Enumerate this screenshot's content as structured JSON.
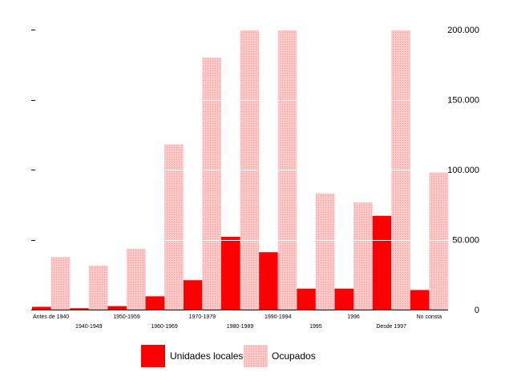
{
  "chart_data": {
    "type": "bar",
    "categories": [
      "Antes de 1940",
      "1940-1949",
      "1950-1959",
      "1960-1969",
      "1970-1979",
      "1980-1989",
      "1990-1994",
      "1995",
      "1996",
      "Desde 1997",
      "No consta"
    ],
    "series": [
      {
        "name": "Unidades locales",
        "color": "#ff0000",
        "pattern": "solid",
        "values": [
          2000,
          1000,
          2500,
          9500,
          21000,
          52000,
          41000,
          15000,
          15000,
          67000,
          14000
        ]
      },
      {
        "name": "Ocupados",
        "color": "#ffc8c8",
        "pattern": "dotted",
        "values": [
          37500,
          31500,
          43500,
          118000,
          180000,
          200000,
          200000,
          83000,
          76500,
          200000,
          98000
        ]
      }
    ],
    "y_axis": {
      "side": "right",
      "ylim": [
        0,
        200000
      ],
      "ticks": [
        0,
        50000,
        100000,
        150000,
        200000
      ],
      "tick_labels": [
        "0",
        "50.000",
        "100.000",
        "150.000",
        "200.000"
      ]
    },
    "left_axis_marks": 5,
    "grid": true,
    "grid_color": "#ffffff",
    "legend_position": "bottom",
    "title": "",
    "xlabel": "",
    "ylabel": ""
  }
}
